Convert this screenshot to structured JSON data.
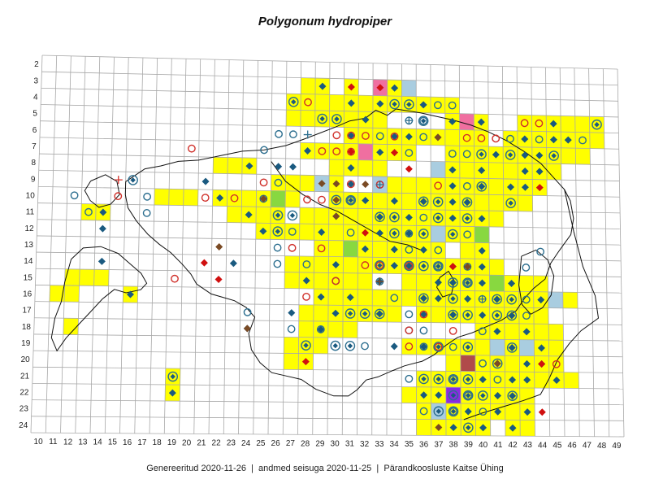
{
  "title": "Polygonum hydropiper",
  "footer": {
    "generated": "Genereeritud 2020-11-26",
    "data_state": "andmed seisuga 2020-11-25",
    "organization": "Pärandkoosluste Kaitse Ühing"
  },
  "x_labels": [
    "10",
    "11",
    "12",
    "13",
    "14",
    "15",
    "16",
    "17",
    "18",
    "19",
    "20",
    "21",
    "22",
    "23",
    "24",
    "25",
    "26",
    "27",
    "28",
    "29",
    "30",
    "31",
    "32",
    "33",
    "34",
    "35",
    "36",
    "37",
    "38",
    "39",
    "40",
    "41",
    "42",
    "43",
    "44",
    "45",
    "46",
    "47",
    "48",
    "49"
  ],
  "y_labels": [
    "2",
    "3",
    "4",
    "5",
    "6",
    "7",
    "8",
    "9",
    "10",
    "11",
    "12",
    "13",
    "14",
    "15",
    "16",
    "17",
    "18",
    "19",
    "20",
    "21",
    "22",
    "23",
    "24"
  ],
  "colors": {
    "occupied": "#ffff00",
    "grid": "#a8a8a8",
    "coast": "#111111",
    "diamond_blue": "#1a5a80",
    "circle_blue": "#2c6e8f",
    "circle_red": "#d0302a",
    "diamond_red": "#d01010",
    "diamond_brown": "#7a4a24",
    "pink": "#f06fa0",
    "lightblue": "#a9cde0",
    "green": "#88d840",
    "darkred": "#b04a4a",
    "purple": "#8a2be2"
  }
}
